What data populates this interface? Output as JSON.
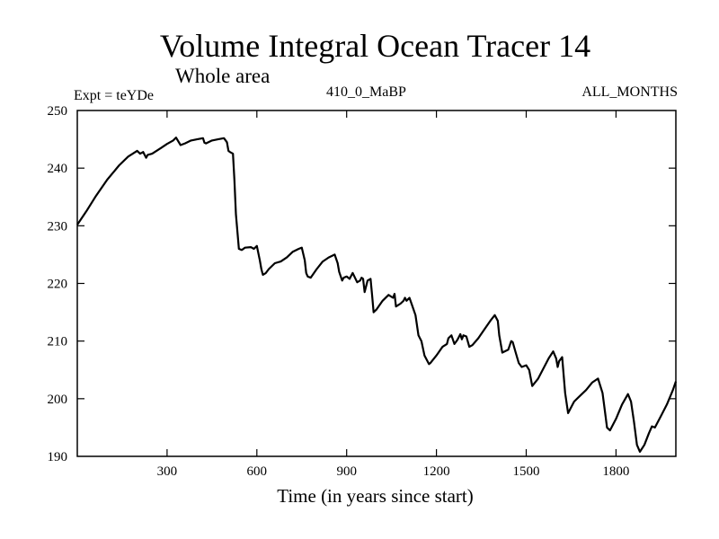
{
  "chart_data": {
    "type": "line",
    "title": "Volume Integral Ocean Tracer 14",
    "subtitle": "Whole area",
    "experiment_label": "Expt = teYDe",
    "center_label": "410_0_MaBP",
    "right_label": "ALL_MONTHS",
    "xlabel": "Time (in years since start)",
    "ylabel": "",
    "xlim": [
      0,
      2000
    ],
    "ylim": [
      190,
      250
    ],
    "xticks": [
      300,
      600,
      900,
      1200,
      1500,
      1800
    ],
    "yticks": [
      190,
      200,
      210,
      220,
      230,
      240,
      250
    ],
    "grid": false,
    "series": [
      {
        "name": "Volume Integral Ocean Tracer 14",
        "x": [
          0,
          30,
          60,
          100,
          140,
          170,
          200,
          210,
          220,
          230,
          235,
          250,
          280,
          300,
          320,
          330,
          345,
          360,
          380,
          400,
          420,
          425,
          430,
          450,
          470,
          490,
          500,
          505,
          510,
          520,
          525,
          530,
          540,
          550,
          560,
          580,
          590,
          600,
          610,
          615,
          620,
          630,
          640,
          660,
          680,
          700,
          720,
          740,
          750,
          760,
          765,
          770,
          780,
          800,
          820,
          840,
          860,
          870,
          875,
          885,
          890,
          900,
          910,
          920,
          935,
          945,
          950,
          955,
          960,
          970,
          980,
          985,
          990,
          1000,
          1020,
          1040,
          1055,
          1060,
          1065,
          1080,
          1090,
          1095,
          1100,
          1110,
          1120,
          1130,
          1140,
          1150,
          1160,
          1175,
          1180,
          1200,
          1220,
          1235,
          1240,
          1250,
          1260,
          1270,
          1280,
          1285,
          1290,
          1300,
          1310,
          1320,
          1340,
          1360,
          1380,
          1395,
          1405,
          1410,
          1420,
          1440,
          1450,
          1455,
          1465,
          1475,
          1485,
          1500,
          1510,
          1520,
          1540,
          1560,
          1575,
          1590,
          1600,
          1605,
          1610,
          1620,
          1630,
          1640,
          1650,
          1660,
          1680,
          1700,
          1720,
          1740,
          1755,
          1760,
          1770,
          1780,
          1800,
          1820,
          1840,
          1850,
          1860,
          1870,
          1880,
          1895,
          1910,
          1920,
          1930,
          1950,
          1970,
          1990,
          2000
        ],
        "values": [
          230.2,
          232.5,
          235.0,
          238.0,
          240.5,
          242.0,
          243.0,
          242.5,
          242.8,
          241.8,
          242.3,
          242.5,
          243.5,
          244.2,
          244.8,
          245.3,
          244.0,
          244.3,
          244.8,
          245.0,
          245.2,
          244.4,
          244.3,
          244.8,
          245.0,
          245.2,
          244.5,
          243.0,
          242.8,
          242.5,
          238.0,
          232.0,
          226.0,
          225.8,
          226.2,
          226.3,
          226.0,
          226.5,
          224.0,
          222.5,
          221.5,
          221.8,
          222.5,
          223.5,
          223.8,
          224.5,
          225.5,
          226.0,
          226.2,
          224.0,
          221.8,
          221.2,
          221.0,
          222.5,
          223.8,
          224.5,
          225.0,
          223.5,
          222.0,
          220.5,
          221.0,
          221.2,
          220.8,
          221.8,
          220.2,
          220.5,
          221.0,
          220.8,
          218.5,
          220.5,
          220.8,
          218.0,
          215.0,
          215.5,
          217.0,
          218.0,
          217.5,
          218.2,
          216.0,
          216.5,
          217.0,
          217.5,
          217.0,
          217.5,
          216.0,
          214.5,
          211.0,
          210.0,
          207.5,
          206.0,
          206.2,
          207.5,
          209.0,
          209.5,
          210.5,
          211.0,
          209.5,
          210.2,
          211.2,
          210.3,
          211.0,
          210.8,
          209.0,
          209.3,
          210.5,
          212.0,
          213.5,
          214.5,
          213.5,
          211.0,
          208.0,
          208.5,
          210.0,
          209.8,
          208.0,
          206.2,
          205.5,
          205.8,
          205.0,
          202.2,
          203.5,
          205.5,
          207.0,
          208.2,
          207.0,
          205.5,
          206.5,
          207.2,
          201.0,
          197.5,
          198.5,
          199.5,
          200.5,
          201.5,
          202.8,
          203.5,
          201.0,
          199.0,
          195.0,
          194.5,
          196.5,
          199.0,
          200.8,
          199.5,
          196.0,
          192.0,
          190.8,
          192.0,
          194.0,
          195.2,
          195.0,
          197.0,
          199.0,
          201.5,
          203.0
        ]
      }
    ]
  }
}
